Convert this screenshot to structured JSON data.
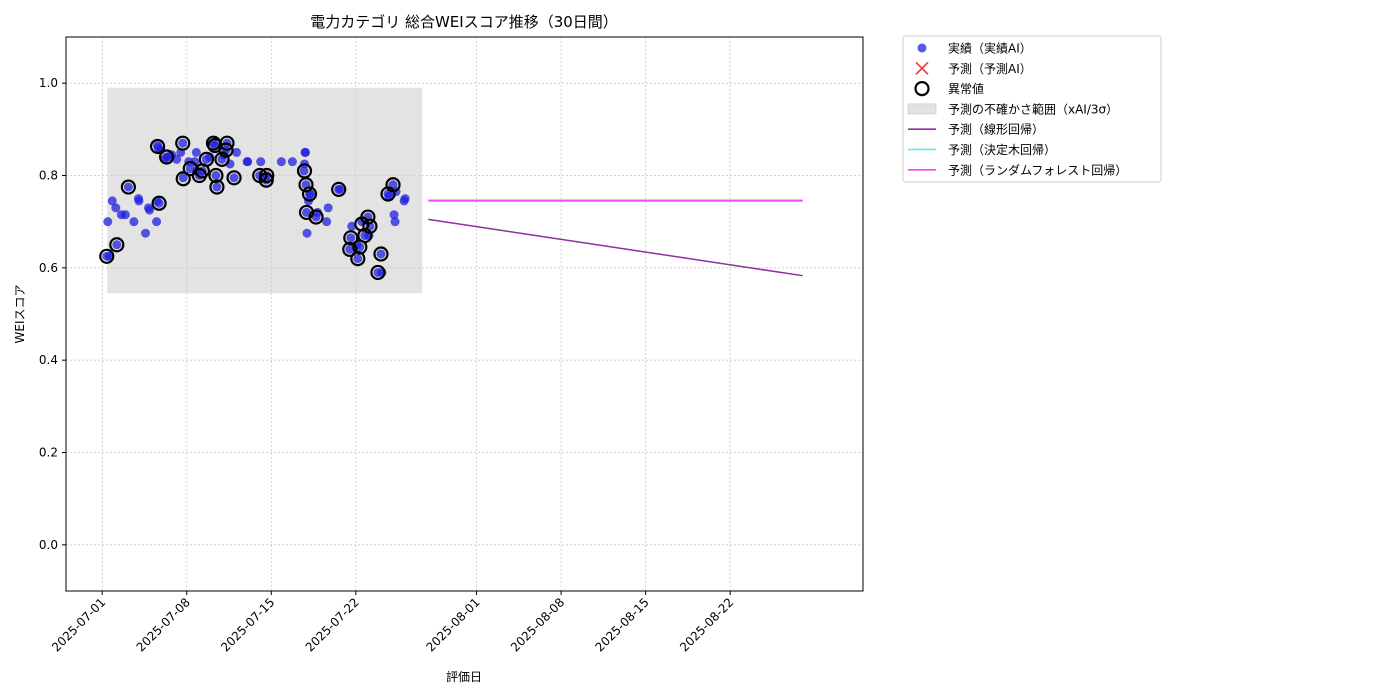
{
  "chart_data": {
    "type": "scatter",
    "title": "電力カテゴリ 総合WEIスコア推移（30日間）",
    "xlabel": "評価日",
    "ylabel": "WEIスコア",
    "ylim": [
      -0.1,
      1.1
    ],
    "yticks": [
      0.0,
      0.2,
      0.4,
      0.6,
      0.8,
      1.0
    ],
    "ytick_labels": [
      "0.0",
      "0.2",
      "0.4",
      "0.6",
      "0.8",
      "1.0"
    ],
    "xlim": [
      "2025-06-28",
      "2025-09-02"
    ],
    "xticks": [
      "2025-07-01",
      "2025-07-08",
      "2025-07-15",
      "2025-07-22",
      "2025-08-01",
      "2025-08-08",
      "2025-08-15",
      "2025-08-22"
    ],
    "grid": true,
    "legend_position": "outside-top-right",
    "colors": {
      "actual": "#1f1fe0",
      "predicted_marker": "#ff3333",
      "anomaly": "#000000",
      "band": "#cccccc",
      "linear": "#8f2fa0",
      "tree": "#38f4ff",
      "forest": "#ff3cf0"
    },
    "legend": [
      {
        "key": "actual",
        "label": "実績（実績AI）"
      },
      {
        "key": "predicted",
        "label": "予測（予測AI）"
      },
      {
        "key": "anomaly",
        "label": "異常値"
      },
      {
        "key": "band",
        "label": "予測の不確かさ範囲（xAI/3σ）"
      },
      {
        "key": "linear",
        "label": "予測（線形回帰）"
      },
      {
        "key": "tree",
        "label": "予測（決定木回帰）"
      },
      {
        "key": "forest",
        "label": "予測（ランダムフォレスト回帰）"
      }
    ],
    "uncertainty_band": {
      "x_start": "2025-07-01 10:00",
      "x_end": "2025-07-27 12:00",
      "y_low": 0.545,
      "y_high": 0.99
    },
    "actual": [
      [
        "2025-07-01 09:00",
        0.625
      ],
      [
        "2025-07-01 11:00",
        0.7
      ],
      [
        "2025-07-01 14:00",
        0.625
      ],
      [
        "2025-07-01 20:00",
        0.745
      ],
      [
        "2025-07-02 03:00",
        0.73
      ],
      [
        "2025-07-02 05:00",
        0.65
      ],
      [
        "2025-07-02 14:00",
        0.715
      ],
      [
        "2025-07-02 22:00",
        0.715
      ],
      [
        "2025-07-03 04:00",
        0.775
      ],
      [
        "2025-07-03 15:00",
        0.7
      ],
      [
        "2025-07-04 00:00",
        0.75
      ],
      [
        "2025-07-04 01:00",
        0.745
      ],
      [
        "2025-07-04 14:00",
        0.675
      ],
      [
        "2025-07-04 20:00",
        0.73
      ],
      [
        "2025-07-04 22:00",
        0.725
      ],
      [
        "2025-07-05 12:00",
        0.7
      ],
      [
        "2025-07-05 13:00",
        0.745
      ],
      [
        "2025-07-05 17:00",
        0.74
      ],
      [
        "2025-07-05 14:00",
        0.865
      ],
      [
        "2025-07-05 15:00",
        0.86
      ],
      [
        "2025-07-05 20:00",
        0.855
      ],
      [
        "2025-07-06 04:00",
        0.835
      ],
      [
        "2025-07-06 08:00",
        0.84
      ],
      [
        "2025-07-06 11:00",
        0.84
      ],
      [
        "2025-07-06 18:00",
        0.845
      ],
      [
        "2025-07-07 04:00",
        0.835
      ],
      [
        "2025-07-07 12:00",
        0.85
      ],
      [
        "2025-07-07 16:00",
        0.87
      ],
      [
        "2025-07-07 17:00",
        0.795
      ],
      [
        "2025-07-08 04:00",
        0.83
      ],
      [
        "2025-07-08 07:00",
        0.815
      ],
      [
        "2025-07-08 16:00",
        0.83
      ],
      [
        "2025-07-08 19:00",
        0.85
      ],
      [
        "2025-07-08 20:00",
        0.81
      ],
      [
        "2025-07-09 01:00",
        0.8
      ],
      [
        "2025-07-09 07:00",
        0.81
      ],
      [
        "2025-07-09 15:00",
        0.835
      ],
      [
        "2025-07-09 22:00",
        0.84
      ],
      [
        "2025-07-10 05:00",
        0.87
      ],
      [
        "2025-07-10 08:00",
        0.865
      ],
      [
        "2025-07-10 10:00",
        0.8
      ],
      [
        "2025-07-10 12:00",
        0.775
      ],
      [
        "2025-07-10 22:00",
        0.835
      ],
      [
        "2025-07-11 02:00",
        0.845
      ],
      [
        "2025-07-11 06:00",
        0.855
      ],
      [
        "2025-07-11 08:00",
        0.87
      ],
      [
        "2025-07-11 14:00",
        0.825
      ],
      [
        "2025-07-11 22:00",
        0.795
      ],
      [
        "2025-07-12 03:00",
        0.85
      ],
      [
        "2025-07-13 00:00",
        0.83
      ],
      [
        "2025-07-13 01:00",
        0.83
      ],
      [
        "2025-07-14 01:00",
        0.8
      ],
      [
        "2025-07-14 03:00",
        0.83
      ],
      [
        "2025-07-14 14:00",
        0.79
      ],
      [
        "2025-07-14 15:00",
        0.8
      ],
      [
        "2025-07-15 20:00",
        0.83
      ],
      [
        "2025-07-16 18:00",
        0.83
      ],
      [
        "2025-07-17 17:00",
        0.81
      ],
      [
        "2025-07-17 18:00",
        0.825
      ],
      [
        "2025-07-17 19:00",
        0.85
      ],
      [
        "2025-07-17 20:00",
        0.85
      ],
      [
        "2025-07-17 21:00",
        0.78
      ],
      [
        "2025-07-17 22:00",
        0.72
      ],
      [
        "2025-07-17 23:00",
        0.675
      ],
      [
        "2025-07-18 02:00",
        0.745
      ],
      [
        "2025-07-18 04:00",
        0.76
      ],
      [
        "2025-07-18 06:00",
        0.76
      ],
      [
        "2025-07-18 17:00",
        0.71
      ],
      [
        "2025-07-18 20:00",
        0.72
      ],
      [
        "2025-07-19 14:00",
        0.7
      ],
      [
        "2025-07-19 17:00",
        0.73
      ],
      [
        "2025-07-20 14:00",
        0.77
      ],
      [
        "2025-07-20 16:00",
        0.77
      ],
      [
        "2025-07-21 12:00",
        0.64
      ],
      [
        "2025-07-21 14:00",
        0.665
      ],
      [
        "2025-07-21 16:00",
        0.69
      ],
      [
        "2025-07-22 02:00",
        0.65
      ],
      [
        "2025-07-22 04:00",
        0.62
      ],
      [
        "2025-07-22 08:00",
        0.645
      ],
      [
        "2025-07-22 12:00",
        0.7
      ],
      [
        "2025-07-22 18:00",
        0.67
      ],
      [
        "2025-07-23 00:00",
        0.71
      ],
      [
        "2025-07-23 02:00",
        0.67
      ],
      [
        "2025-07-23 04:00",
        0.69
      ],
      [
        "2025-07-23 20:00",
        0.59
      ],
      [
        "2025-07-24 02:00",
        0.63
      ],
      [
        "2025-07-24 04:00",
        0.59
      ],
      [
        "2025-07-24 16:00",
        0.76
      ],
      [
        "2025-07-24 18:00",
        0.755
      ],
      [
        "2025-07-25 02:00",
        0.78
      ],
      [
        "2025-07-25 04:00",
        0.715
      ],
      [
        "2025-07-25 06:00",
        0.7
      ],
      [
        "2025-07-25 08:00",
        0.765
      ],
      [
        "2025-07-26 00:00",
        0.745
      ],
      [
        "2025-07-26 02:00",
        0.75
      ]
    ],
    "anomalies": [
      [
        "2025-07-01 09:00",
        0.625
      ],
      [
        "2025-07-02 05:00",
        0.65
      ],
      [
        "2025-07-03 04:00",
        0.775
      ],
      [
        "2025-07-05 14:00",
        0.863
      ],
      [
        "2025-07-05 17:00",
        0.74
      ],
      [
        "2025-07-06 08:00",
        0.84
      ],
      [
        "2025-07-07 16:00",
        0.87
      ],
      [
        "2025-07-07 17:00",
        0.793
      ],
      [
        "2025-07-08 07:00",
        0.815
      ],
      [
        "2025-07-09 01:00",
        0.8
      ],
      [
        "2025-07-09 07:00",
        0.81
      ],
      [
        "2025-07-09 15:00",
        0.835
      ],
      [
        "2025-07-10 05:00",
        0.87
      ],
      [
        "2025-07-10 08:00",
        0.865
      ],
      [
        "2025-07-10 10:00",
        0.8
      ],
      [
        "2025-07-10 12:00",
        0.775
      ],
      [
        "2025-07-10 22:00",
        0.835
      ],
      [
        "2025-07-11 06:00",
        0.855
      ],
      [
        "2025-07-11 08:00",
        0.87
      ],
      [
        "2025-07-11 22:00",
        0.795
      ],
      [
        "2025-07-14 01:00",
        0.8
      ],
      [
        "2025-07-14 15:00",
        0.8
      ],
      [
        "2025-07-14 14:00",
        0.79
      ],
      [
        "2025-07-17 18:00",
        0.81
      ],
      [
        "2025-07-17 21:00",
        0.78
      ],
      [
        "2025-07-17 22:00",
        0.72
      ],
      [
        "2025-07-18 04:00",
        0.76
      ],
      [
        "2025-07-18 17:00",
        0.71
      ],
      [
        "2025-07-20 14:00",
        0.77
      ],
      [
        "2025-07-21 12:00",
        0.64
      ],
      [
        "2025-07-21 14:00",
        0.665
      ],
      [
        "2025-07-22 04:00",
        0.62
      ],
      [
        "2025-07-22 08:00",
        0.645
      ],
      [
        "2025-07-22 12:00",
        0.695
      ],
      [
        "2025-07-22 18:00",
        0.67
      ],
      [
        "2025-07-23 00:00",
        0.71
      ],
      [
        "2025-07-23 04:00",
        0.69
      ],
      [
        "2025-07-23 20:00",
        0.59
      ],
      [
        "2025-07-24 02:00",
        0.63
      ],
      [
        "2025-07-24 16:00",
        0.76
      ],
      [
        "2025-07-25 02:00",
        0.78
      ]
    ],
    "forecast_lines": [
      {
        "key": "tree",
        "x": [
          "2025-07-28 00:00",
          "2025-08-28 00:00"
        ],
        "y": [
          0.747,
          0.747
        ]
      },
      {
        "key": "forest",
        "x": [
          "2025-07-28 00:00",
          "2025-08-28 00:00"
        ],
        "y": [
          0.745,
          0.745
        ]
      },
      {
        "key": "linear",
        "x": [
          "2025-07-28 00:00",
          "2025-08-28 00:00"
        ],
        "y": [
          0.705,
          0.583
        ]
      }
    ]
  }
}
